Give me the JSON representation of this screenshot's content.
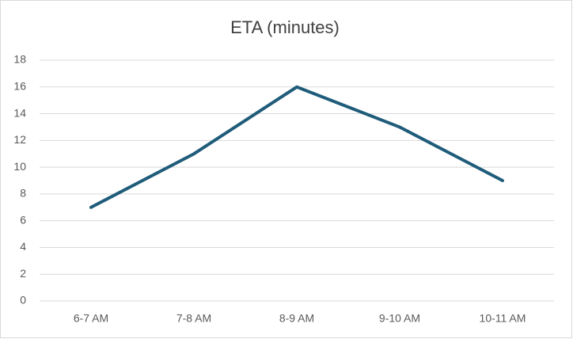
{
  "chart_data": {
    "type": "line",
    "title": "ETA (minutes)",
    "categories": [
      "6-7 AM",
      "7-8 AM",
      "8-9 AM",
      "9-10 AM",
      "10-11 AM"
    ],
    "values": [
      7,
      11,
      16,
      13,
      9
    ],
    "color": "#1f5c7a",
    "ylim": [
      0,
      18
    ],
    "yticks": [
      0,
      2,
      4,
      6,
      8,
      10,
      12,
      14,
      16,
      18
    ],
    "grid": true
  }
}
